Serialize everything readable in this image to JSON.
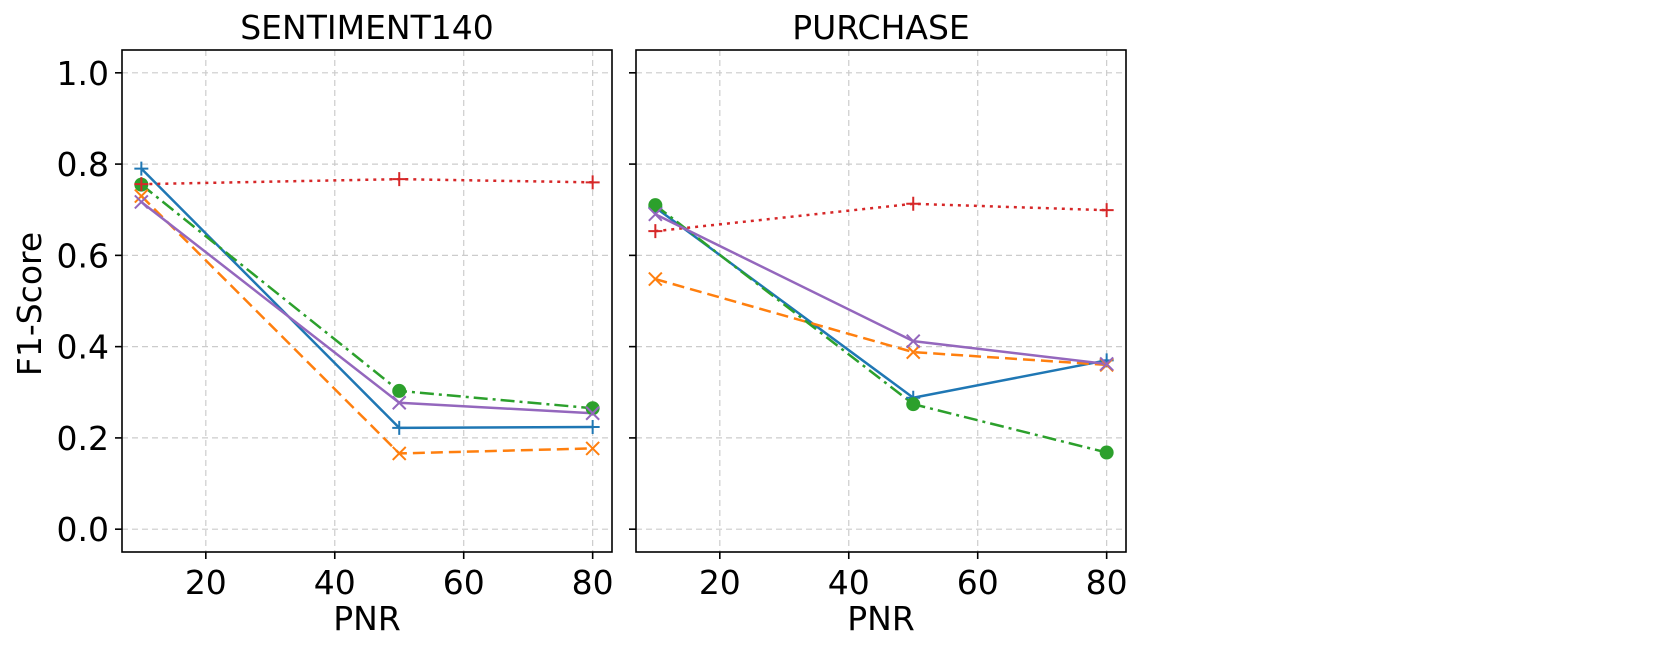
{
  "y_axis_label": "F1-Score",
  "colors": {
    "blue": "#1f77b4",
    "orange": "#ff7f0e",
    "green": "#2ca02c",
    "red": "#d62728",
    "purple": "#9467bd",
    "grid": "#cccccc"
  },
  "chart_data": [
    {
      "type": "line",
      "title": "SENTIMENT140",
      "xlabel": "PNR",
      "ylabel": "F1-Score",
      "xlim": [
        7,
        83
      ],
      "ylim": [
        -0.05,
        1.05
      ],
      "xticks": [
        20,
        40,
        60,
        80
      ],
      "yticks": [
        0.0,
        0.2,
        0.4,
        0.6,
        0.8,
        1.0
      ],
      "grid": true,
      "x": [
        10,
        50,
        80
      ],
      "series": [
        {
          "color": "blue",
          "linestyle": "solid",
          "marker": "plus",
          "values": [
            0.79,
            0.222,
            0.224
          ]
        },
        {
          "color": "orange",
          "linestyle": "dashed",
          "marker": "x",
          "values": [
            0.73,
            0.166,
            0.177
          ]
        },
        {
          "color": "green",
          "linestyle": "dashdot",
          "marker": "circle",
          "values": [
            0.755,
            0.303,
            0.265
          ]
        },
        {
          "color": "red",
          "linestyle": "dotted",
          "marker": "plus",
          "values": [
            0.756,
            0.767,
            0.76
          ]
        },
        {
          "color": "purple",
          "linestyle": "solid",
          "marker": "x",
          "values": [
            0.717,
            0.277,
            0.254
          ]
        }
      ]
    },
    {
      "type": "line",
      "title": "PURCHASE",
      "xlabel": "PNR",
      "xlim": [
        7,
        83
      ],
      "ylim": [
        -0.05,
        1.05
      ],
      "xticks": [
        20,
        40,
        60,
        80
      ],
      "yticks": [
        0.0,
        0.2,
        0.4,
        0.6,
        0.8,
        1.0
      ],
      "grid": true,
      "x": [
        10,
        50,
        80
      ],
      "series": [
        {
          "color": "blue",
          "linestyle": "solid",
          "marker": "plus",
          "values": [
            0.705,
            0.288,
            0.37
          ]
        },
        {
          "color": "orange",
          "linestyle": "dashed",
          "marker": "x",
          "values": [
            0.548,
            0.388,
            0.36
          ]
        },
        {
          "color": "green",
          "linestyle": "dashdot",
          "marker": "circle",
          "values": [
            0.71,
            0.274,
            0.168
          ]
        },
        {
          "color": "red",
          "linestyle": "dotted",
          "marker": "plus",
          "values": [
            0.653,
            0.713,
            0.699
          ]
        },
        {
          "color": "purple",
          "linestyle": "solid",
          "marker": "x",
          "values": [
            0.69,
            0.412,
            0.362
          ]
        }
      ]
    }
  ]
}
